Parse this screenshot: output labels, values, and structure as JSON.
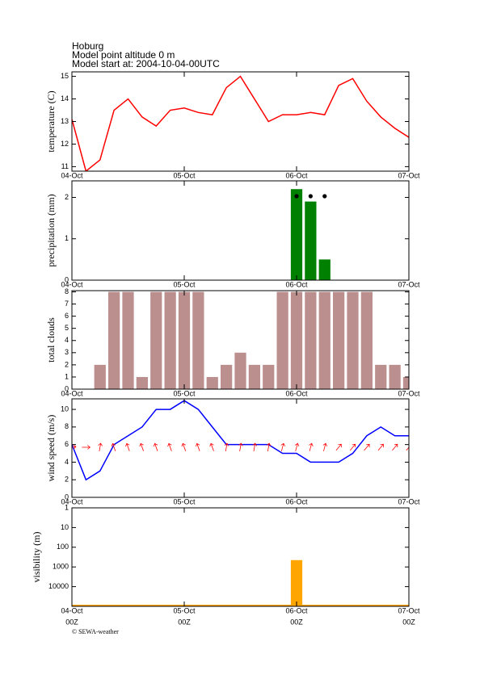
{
  "header": {
    "station": "Hoburg",
    "altitude": "Model point altitude  0 m",
    "start": "Model start at: 2004-10-04-00UTC"
  },
  "footer": "© SEWA-weather",
  "chart_data": [
    {
      "type": "line",
      "ylabel": "temperature (C)",
      "color": "#ff0000",
      "x": [
        0,
        3,
        6,
        9,
        12,
        15,
        18,
        21,
        24,
        27,
        30,
        33,
        36,
        39,
        42,
        45,
        48,
        51,
        54,
        57,
        60,
        63,
        66,
        69,
        72
      ],
      "values": [
        13.1,
        10.8,
        11.3,
        13.5,
        14.0,
        13.2,
        12.8,
        13.5,
        13.6,
        13.4,
        13.3,
        14.5,
        15.0,
        14.0,
        13.0,
        13.3,
        13.3,
        13.4,
        13.3,
        14.6,
        14.9,
        13.9,
        13.2,
        12.7,
        12.3
      ],
      "xlim": [
        0,
        72
      ],
      "xticks": [
        {
          "value": 0,
          "label": "04-Oct"
        },
        {
          "value": 24,
          "label": "05-Oct"
        },
        {
          "value": 48,
          "label": "06-Oct"
        },
        {
          "value": 72,
          "label": "07-Oct"
        }
      ],
      "ylim": [
        10.8,
        15.2
      ],
      "yticks": [
        11,
        12,
        13,
        14,
        15
      ]
    },
    {
      "type": "bar",
      "ylabel": "precipitation (mm)",
      "color": "#008000",
      "markers": true,
      "x": [
        48,
        51,
        54
      ],
      "values": [
        2.2,
        1.9,
        0.5
      ],
      "xlim": [
        0,
        72
      ],
      "xticks": [
        {
          "value": 0,
          "label": "04-Oct"
        },
        {
          "value": 24,
          "label": "05-Oct"
        },
        {
          "value": 48,
          "label": "06-Oct"
        },
        {
          "value": 72,
          "label": "07-Oct"
        }
      ],
      "ylim": [
        0,
        2.4
      ],
      "yticks": [
        0,
        1,
        2
      ]
    },
    {
      "type": "bar",
      "ylabel": "total clouds",
      "color": "#bc8f8f",
      "x": [
        0,
        3,
        6,
        9,
        12,
        15,
        18,
        21,
        24,
        27,
        30,
        33,
        36,
        39,
        42,
        45,
        48,
        51,
        54,
        57,
        60,
        63,
        66,
        69,
        72
      ],
      "values": [
        0,
        0,
        2,
        8,
        8,
        1,
        8,
        8,
        8,
        8,
        1,
        2,
        3,
        2,
        2,
        8,
        8,
        8,
        8,
        8,
        8,
        8,
        2,
        2,
        1
      ],
      "xlim": [
        0,
        72
      ],
      "xticks": [
        {
          "value": 0,
          "label": "04-Oct"
        },
        {
          "value": 24,
          "label": "05-Oct"
        },
        {
          "value": 48,
          "label": "06-Oct"
        },
        {
          "value": 72,
          "label": "07-Oct"
        }
      ],
      "ylim": [
        0,
        8.1
      ],
      "yticks": [
        0,
        1,
        2,
        3,
        4,
        5,
        6,
        7,
        8
      ]
    },
    {
      "type": "line",
      "ylabel": "wind speed (m/s)",
      "color": "#0000ff",
      "arrow_color": "#ff0000",
      "x": [
        0,
        3,
        6,
        9,
        12,
        15,
        18,
        21,
        24,
        27,
        30,
        33,
        36,
        39,
        42,
        45,
        48,
        51,
        54,
        57,
        60,
        63,
        66,
        69,
        72
      ],
      "values": [
        6,
        2,
        3,
        6,
        7,
        8,
        10,
        10,
        11,
        10,
        8,
        6,
        6,
        6,
        6,
        5,
        5,
        4,
        4,
        4,
        5,
        7,
        8,
        7,
        7
      ],
      "directions": [
        80,
        90,
        10,
        340,
        340,
        340,
        340,
        340,
        340,
        340,
        340,
        10,
        10,
        10,
        10,
        15,
        15,
        15,
        15,
        40,
        40,
        40,
        40,
        40,
        40
      ],
      "xlim": [
        0,
        72
      ],
      "xticks": [
        {
          "value": 0,
          "label": "04-Oct"
        },
        {
          "value": 24,
          "label": "05-Oct"
        },
        {
          "value": 48,
          "label": "06-Oct"
        },
        {
          "value": 72,
          "label": "07-Oct"
        }
      ],
      "ylim": [
        0,
        11.2
      ],
      "yticks": [
        0,
        2,
        4,
        6,
        8,
        10
      ]
    },
    {
      "type": "bar",
      "ylabel": "visibility (m)",
      "color": "#ffa500",
      "log": true,
      "inverted": true,
      "x": [
        48
      ],
      "values": [
        450
      ],
      "xlim": [
        0,
        72
      ],
      "xticks": [
        {
          "value": 0,
          "label": "04-Oct"
        },
        {
          "value": 24,
          "label": "05-Oct"
        },
        {
          "value": 48,
          "label": "06-Oct"
        },
        {
          "value": 72,
          "label": "07-Oct"
        }
      ],
      "xtick_sublabels": [
        "00Z",
        "00Z",
        "00Z",
        "00Z"
      ],
      "ylim": [
        1,
        100000
      ],
      "yticks": [
        1,
        10,
        100,
        1000,
        10000
      ]
    }
  ]
}
